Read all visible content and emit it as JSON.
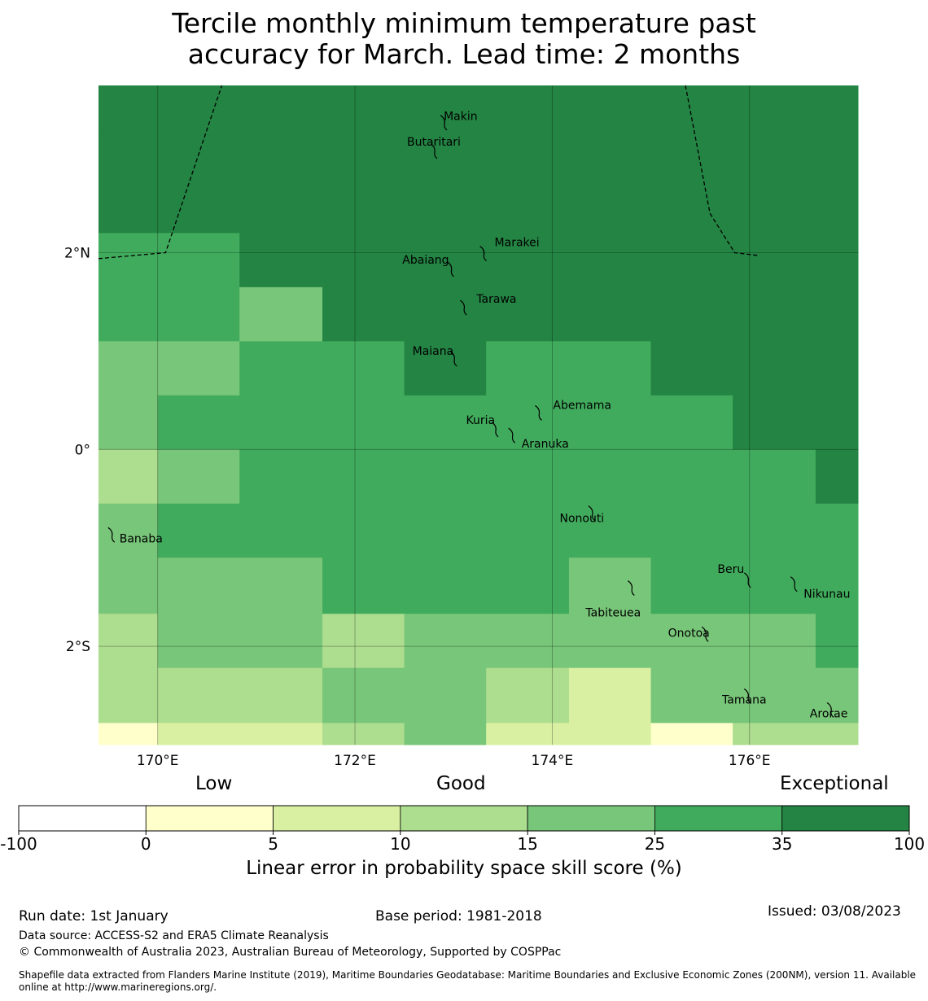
{
  "title": {
    "line1": "Tercile monthly minimum temperature past",
    "line2": "accuracy for March. Lead time: 2 months"
  },
  "map": {
    "lon_range": [
      169.4,
      177.1
    ],
    "lat_range": [
      -3.0,
      3.7
    ],
    "lon_ticks": [
      {
        "value": 170,
        "label": "170°E"
      },
      {
        "value": 172,
        "label": "172°E"
      },
      {
        "value": 174,
        "label": "174°E"
      },
      {
        "value": 176,
        "label": "176°E"
      }
    ],
    "lat_ticks": [
      {
        "value": 2,
        "label": "2°N"
      },
      {
        "value": 0,
        "label": "0°"
      },
      {
        "value": -2,
        "label": "2°S"
      }
    ],
    "class_colors": [
      "#ffffcc",
      "#d9f0a3",
      "#addd8e",
      "#78c679",
      "#41ab5d",
      "#238443"
    ],
    "grid": {
      "rows": [
        {
          "lat": [
            3.2,
            3.7
          ],
          "cells": [
            [
              169.4,
              177.1,
              5
            ]
          ]
        },
        {
          "lat": [
            2.2,
            3.2
          ],
          "cells": [
            [
              169.4,
              177.1,
              5
            ]
          ]
        },
        {
          "lat": [
            1.65,
            2.2
          ],
          "cells": [
            [
              169.4,
              170.83,
              4
            ],
            [
              170.83,
              177.1,
              5
            ]
          ]
        },
        {
          "lat": [
            1.1,
            1.65
          ],
          "cells": [
            [
              169.4,
              170.83,
              4
            ],
            [
              170.83,
              171.67,
              3
            ],
            [
              171.67,
              177.1,
              5
            ]
          ]
        },
        {
          "lat": [
            0.55,
            1.1
          ],
          "cells": [
            [
              169.4,
              170.83,
              3
            ],
            [
              170.83,
              172.5,
              4
            ],
            [
              172.5,
              173.33,
              5
            ],
            [
              173.33,
              175.0,
              4
            ],
            [
              175.0,
              177.1,
              5
            ]
          ]
        },
        {
          "lat": [
            0.0,
            0.55
          ],
          "cells": [
            [
              169.4,
              170.0,
              3
            ],
            [
              170.0,
              175.83,
              4
            ],
            [
              175.83,
              177.1,
              5
            ]
          ]
        },
        {
          "lat": [
            -0.55,
            0.0
          ],
          "cells": [
            [
              169.4,
              170.0,
              2
            ],
            [
              170.0,
              170.83,
              3
            ],
            [
              170.83,
              176.67,
              4
            ],
            [
              176.67,
              177.1,
              5
            ]
          ]
        },
        {
          "lat": [
            -1.1,
            -0.55
          ],
          "cells": [
            [
              169.4,
              170.0,
              3
            ],
            [
              170.0,
              177.1,
              4
            ]
          ]
        },
        {
          "lat": [
            -1.67,
            -1.1
          ],
          "cells": [
            [
              169.4,
              171.67,
              3
            ],
            [
              171.67,
              174.17,
              4
            ],
            [
              174.17,
              175.0,
              3
            ],
            [
              175.0,
              177.1,
              4
            ]
          ]
        },
        {
          "lat": [
            -2.22,
            -1.67
          ],
          "cells": [
            [
              169.4,
              170.0,
              2
            ],
            [
              170.0,
              171.67,
              3
            ],
            [
              171.67,
              172.5,
              2
            ],
            [
              172.5,
              176.67,
              3
            ],
            [
              176.67,
              177.1,
              4
            ]
          ]
        },
        {
          "lat": [
            -2.78,
            -2.22
          ],
          "cells": [
            [
              169.4,
              171.67,
              2
            ],
            [
              171.67,
              173.33,
              3
            ],
            [
              173.33,
              174.17,
              2
            ],
            [
              174.17,
              175.0,
              1
            ],
            [
              175.0,
              177.1,
              3
            ]
          ]
        },
        {
          "lat": [
            -3.0,
            -2.78
          ],
          "cells": [
            [
              169.4,
              170.0,
              0
            ],
            [
              170.0,
              171.67,
              1
            ],
            [
              171.67,
              172.5,
              2
            ],
            [
              172.5,
              173.33,
              3
            ],
            [
              173.33,
              175.0,
              1
            ],
            [
              175.0,
              175.83,
              0
            ],
            [
              175.83,
              177.1,
              2
            ]
          ]
        }
      ]
    },
    "eez_lines": [
      [
        [
          169.4,
          1.94
        ],
        [
          170.08,
          2.0
        ],
        [
          170.65,
          3.7
        ]
      ],
      [
        [
          175.35,
          3.7
        ],
        [
          175.6,
          2.4
        ],
        [
          175.85,
          2.0
        ],
        [
          176.1,
          1.97
        ]
      ]
    ],
    "islands": [
      {
        "name": "Makin",
        "lon": 172.9,
        "lat": 3.33
      },
      {
        "name": "Butaritari",
        "lon": 172.8,
        "lat": 3.04
      },
      {
        "name": "Marakei",
        "lon": 173.3,
        "lat": 2.0
      },
      {
        "name": "Abaiang",
        "lon": 172.97,
        "lat": 1.84
      },
      {
        "name": "Tarawa",
        "lon": 173.1,
        "lat": 1.45
      },
      {
        "name": "Maiana",
        "lon": 173.0,
        "lat": 0.93
      },
      {
        "name": "Abemama",
        "lon": 173.86,
        "lat": 0.38
      },
      {
        "name": "Kuria",
        "lon": 173.42,
        "lat": 0.21
      },
      {
        "name": "Aranuka",
        "lon": 173.59,
        "lat": 0.15
      },
      {
        "name": "Nonouti",
        "lon": 174.4,
        "lat": -0.64
      },
      {
        "name": "Banaba",
        "lon": 169.53,
        "lat": -0.86
      },
      {
        "name": "Tabiteuea",
        "lon": 174.8,
        "lat": -1.4
      },
      {
        "name": "Beru",
        "lon": 175.98,
        "lat": -1.32
      },
      {
        "name": "Nikunau",
        "lon": 176.45,
        "lat": -1.36
      },
      {
        "name": "Onotoa",
        "lon": 175.55,
        "lat": -1.87
      },
      {
        "name": "Tamana",
        "lon": 175.98,
        "lat": -2.5
      },
      {
        "name": "Arorae",
        "lon": 176.82,
        "lat": -2.64
      }
    ]
  },
  "colorbar": {
    "categories": {
      "low": "Low",
      "good": "Good",
      "exceptional": "Exceptional"
    },
    "segments": [
      {
        "from": "-100",
        "to": "0",
        "color": "#ffffff"
      },
      {
        "from": "0",
        "to": "5",
        "color": "#ffffcc"
      },
      {
        "from": "5",
        "to": "10",
        "color": "#d9f0a3"
      },
      {
        "from": "10",
        "to": "15",
        "color": "#addd8e"
      },
      {
        "from": "15",
        "to": "25",
        "color": "#78c679"
      },
      {
        "from": "25",
        "to": "35",
        "color": "#41ab5d"
      },
      {
        "from": "35",
        "to": "100",
        "color": "#238443"
      }
    ],
    "ticks": [
      "-100",
      "0",
      "5",
      "10",
      "15",
      "25",
      "35",
      "100"
    ],
    "label": "Linear error in probability space skill score (%)"
  },
  "footer": {
    "run_date": "Run date: 1st January",
    "base_period": "Base period: 1981-2018",
    "issued": "Issued: 03/08/2023",
    "data_source": "Data source: ACCESS-S2 and ERA5 Climate Reanalysis",
    "copyright": "© Commonwealth of Australia 2023, Australian Bureau of Meteorology, Supported by COSPPac",
    "shapefile_line1": "Shapefile data extracted from Flanders Marine Institute (2019), Maritime Boundaries Geodatabase: Maritime Boundaries and Exclusive Economic Zones (200NM), version 11. Available",
    "shapefile_line2": "online at http://www.marineregions.org/."
  }
}
